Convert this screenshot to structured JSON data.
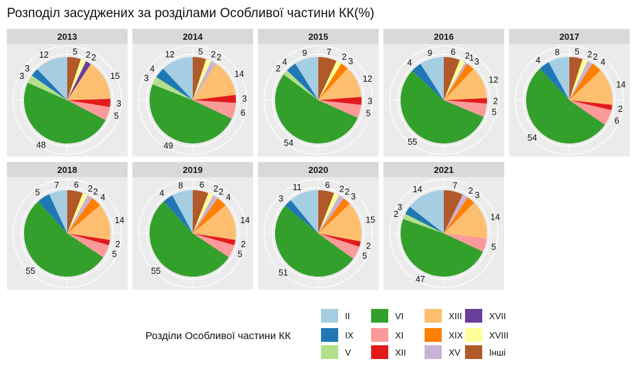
{
  "title": "Розподіл засуджених за розділами Особливої частини КК(%)",
  "chart_data": {
    "type": "pie",
    "title": "Розподіл засуджених за розділами Особливої частини КК(%)",
    "legend_title": "Розділи Особливої частини КК",
    "legend_position": "bottom",
    "categories": [
      "II",
      "IX",
      "V",
      "VI",
      "XI",
      "XII",
      "XIII",
      "XIX",
      "XV",
      "XVII",
      "XVIII",
      "Інші"
    ],
    "colors": [
      "#a6cee3",
      "#1f78b4",
      "#b2df8a",
      "#33a02c",
      "#fb9a99",
      "#e31a1c",
      "#fdbf6f",
      "#ff7f00",
      "#cab2d6",
      "#6a3d9a",
      "#ffff99",
      "#b15928"
    ],
    "panels": [
      {
        "year": "2013",
        "slices": [
          {
            "cat": "Інші",
            "value": 5,
            "label": "5"
          },
          {
            "cat": "XVIII",
            "value": 2,
            "label": "2"
          },
          {
            "cat": "XVII",
            "value": 2,
            "label": "2"
          },
          {
            "cat": "XIII",
            "value": 15,
            "label": "15"
          },
          {
            "cat": "XII",
            "value": 3,
            "label": "3"
          },
          {
            "cat": "XI",
            "value": 5,
            "label": "5"
          },
          {
            "cat": "VI",
            "value": 48,
            "label": "48"
          },
          {
            "cat": "V",
            "value": 3,
            "label": "3"
          },
          {
            "cat": "IX",
            "value": 3,
            "label": "3"
          },
          {
            "cat": "II",
            "value": 12,
            "label": "12"
          }
        ]
      },
      {
        "year": "2014",
        "slices": [
          {
            "cat": "Інші",
            "value": 5,
            "label": "5"
          },
          {
            "cat": "XVIII",
            "value": 2,
            "label": "2"
          },
          {
            "cat": "XV",
            "value": 2,
            "label": "2"
          },
          {
            "cat": "XIII",
            "value": 14,
            "label": "14"
          },
          {
            "cat": "XII",
            "value": 3,
            "label": "3"
          },
          {
            "cat": "XI",
            "value": 6,
            "label": "6"
          },
          {
            "cat": "VI",
            "value": 49,
            "label": "49"
          },
          {
            "cat": "V",
            "value": 3,
            "label": "3"
          },
          {
            "cat": "IX",
            "value": 4,
            "label": "4"
          },
          {
            "cat": "II",
            "value": 12,
            "label": "12"
          }
        ]
      },
      {
        "year": "2015",
        "slices": [
          {
            "cat": "Інші",
            "value": 7,
            "label": "7"
          },
          {
            "cat": "XVIII",
            "value": 2,
            "label": "2"
          },
          {
            "cat": "XIX",
            "value": 3,
            "label": "3"
          },
          {
            "cat": "XIII",
            "value": 12,
            "label": "12"
          },
          {
            "cat": "XII",
            "value": 3,
            "label": "3"
          },
          {
            "cat": "XI",
            "value": 5,
            "label": "5"
          },
          {
            "cat": "VI",
            "value": 54,
            "label": "54"
          },
          {
            "cat": "V",
            "value": 2,
            "label": "2"
          },
          {
            "cat": "IX",
            "value": 4,
            "label": "4"
          },
          {
            "cat": "II",
            "value": 9,
            "label": "9"
          }
        ]
      },
      {
        "year": "2016",
        "slices": [
          {
            "cat": "Інші",
            "value": 6,
            "label": "6"
          },
          {
            "cat": "XVIII",
            "value": 2,
            "label": "2"
          },
          {
            "cat": "XV",
            "value": 1,
            "label": "1"
          },
          {
            "cat": "XIX",
            "value": 3,
            "label": "3"
          },
          {
            "cat": "XIII",
            "value": 12,
            "label": "12"
          },
          {
            "cat": "XII",
            "value": 2,
            "label": "2"
          },
          {
            "cat": "XI",
            "value": 5,
            "label": "5"
          },
          {
            "cat": "VI",
            "value": 55,
            "label": "55"
          },
          {
            "cat": "IX",
            "value": 4,
            "label": "4"
          },
          {
            "cat": "II",
            "value": 9,
            "label": "9"
          }
        ]
      },
      {
        "year": "2017",
        "slices": [
          {
            "cat": "Інші",
            "value": 5,
            "label": "5"
          },
          {
            "cat": "XVIII",
            "value": 2,
            "label": "2"
          },
          {
            "cat": "XV",
            "value": 2,
            "label": "2"
          },
          {
            "cat": "XIX",
            "value": 4,
            "label": "4"
          },
          {
            "cat": "XIII",
            "value": 14,
            "label": "14"
          },
          {
            "cat": "XII",
            "value": 2,
            "label": "2"
          },
          {
            "cat": "XI",
            "value": 6,
            "label": "6"
          },
          {
            "cat": "VI",
            "value": 54,
            "label": "54"
          },
          {
            "cat": "IX",
            "value": 4,
            "label": "4"
          },
          {
            "cat": "II",
            "value": 8,
            "label": "8"
          }
        ]
      },
      {
        "year": "2018",
        "slices": [
          {
            "cat": "Інші",
            "value": 6,
            "label": "6"
          },
          {
            "cat": "XVIII",
            "value": 2,
            "label": "2"
          },
          {
            "cat": "XV",
            "value": 2,
            "label": "2"
          },
          {
            "cat": "XIX",
            "value": 4,
            "label": "4"
          },
          {
            "cat": "XIII",
            "value": 14,
            "label": "14"
          },
          {
            "cat": "XII",
            "value": 2,
            "label": "2"
          },
          {
            "cat": "XI",
            "value": 5,
            "label": "5"
          },
          {
            "cat": "VI",
            "value": 55,
            "label": "55"
          },
          {
            "cat": "IX",
            "value": 5,
            "label": "5"
          },
          {
            "cat": "II",
            "value": 7,
            "label": "7"
          }
        ]
      },
      {
        "year": "2019",
        "slices": [
          {
            "cat": "Інші",
            "value": 6,
            "label": "6"
          },
          {
            "cat": "XVIII",
            "value": 2,
            "label": "2"
          },
          {
            "cat": "XV",
            "value": 2,
            "label": "2"
          },
          {
            "cat": "XIX",
            "value": 4,
            "label": "4"
          },
          {
            "cat": "XIII",
            "value": 14,
            "label": "14"
          },
          {
            "cat": "XII",
            "value": 2,
            "label": "2"
          },
          {
            "cat": "XI",
            "value": 5,
            "label": "5"
          },
          {
            "cat": "VI",
            "value": 55,
            "label": "55"
          },
          {
            "cat": "IX",
            "value": 4,
            "label": "4"
          },
          {
            "cat": "II",
            "value": 8,
            "label": "8"
          }
        ]
      },
      {
        "year": "2020",
        "slices": [
          {
            "cat": "Інші",
            "value": 6,
            "label": "6"
          },
          {
            "cat": "XVIII",
            "value": 2,
            "label": "2"
          },
          {
            "cat": "XV",
            "value": 2,
            "label": "2"
          },
          {
            "cat": "XIX",
            "value": 3,
            "label": "3"
          },
          {
            "cat": "XIII",
            "value": 15,
            "label": "15"
          },
          {
            "cat": "XII",
            "value": 2,
            "label": "2"
          },
          {
            "cat": "XI",
            "value": 5,
            "label": "5"
          },
          {
            "cat": "VI",
            "value": 51,
            "label": "51"
          },
          {
            "cat": "IX",
            "value": 3,
            "label": "3"
          },
          {
            "cat": "II",
            "value": 11,
            "label": "11"
          }
        ]
      },
      {
        "year": "2021",
        "slices": [
          {
            "cat": "Інші",
            "value": 7,
            "label": "7"
          },
          {
            "cat": "XV",
            "value": 2,
            "label": "2"
          },
          {
            "cat": "XIX",
            "value": 3,
            "label": "3"
          },
          {
            "cat": "XIII",
            "value": 14,
            "label": "14"
          },
          {
            "cat": "XI",
            "value": 5,
            "label": "5"
          },
          {
            "cat": "VI",
            "value": 47,
            "label": "47"
          },
          {
            "cat": "V",
            "value": 2,
            "label": "2"
          },
          {
            "cat": "IX",
            "value": 3,
            "label": "3"
          },
          {
            "cat": "II",
            "value": 14,
            "label": "14"
          }
        ]
      }
    ]
  }
}
